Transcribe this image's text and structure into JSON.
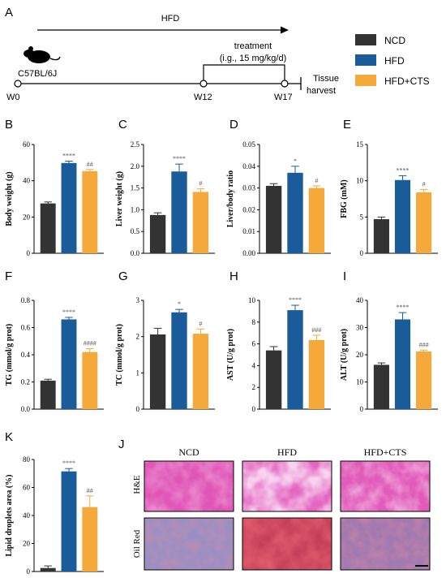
{
  "labels": {
    "panel_a": "A",
    "panel_j": "J"
  },
  "timeline": {
    "hfd_label": "HFD",
    "treatment_label": "treatment",
    "dose_label": "(i.g., 15 mg/kg/d)",
    "mouse_label": "C57BL/6J",
    "timepoints": [
      "W0",
      "W12",
      "W17"
    ],
    "end_label_1": "Tissue",
    "end_label_2": "harvest"
  },
  "legend": [
    {
      "name": "NCD",
      "color": "#333333"
    },
    {
      "name": "HFD",
      "color": "#1a5c99"
    },
    {
      "name": "HFD+CTS",
      "color": "#f4a93a"
    }
  ],
  "histology": {
    "columns": [
      "NCD",
      "HFD",
      "HFD+CTS"
    ],
    "rows": [
      "H&E",
      "Oil Red"
    ]
  },
  "chart_data": [
    {
      "panel": "B",
      "type": "bar",
      "categories": [
        "NCD",
        "HFD",
        "HFD+CTS"
      ],
      "values": [
        27.5,
        49.8,
        45.3
      ],
      "errors": [
        0.8,
        1.0,
        0.9
      ],
      "ylabel": "Body weight (g)",
      "ylim": [
        0,
        60
      ],
      "yticks": [
        "0",
        "20",
        "40",
        "60"
      ],
      "annotations": [
        "",
        "****",
        "##"
      ]
    },
    {
      "panel": "C",
      "type": "bar",
      "categories": [
        "NCD",
        "HFD",
        "HFD+CTS"
      ],
      "values": [
        0.88,
        1.88,
        1.41
      ],
      "errors": [
        0.05,
        0.17,
        0.07
      ],
      "ylabel": "Liver weight (g)",
      "ylim": [
        0,
        2.5
      ],
      "yticks": [
        "0.0",
        "0.5",
        "1.0",
        "1.5",
        "2.0",
        "2.5"
      ],
      "annotations": [
        "",
        "****",
        "#"
      ]
    },
    {
      "panel": "D",
      "type": "bar",
      "categories": [
        "NCD",
        "HFD",
        "HFD+CTS"
      ],
      "values": [
        0.031,
        0.037,
        0.03
      ],
      "errors": [
        0.001,
        0.003,
        0.001
      ],
      "ylabel": "Liver/body ratio",
      "ylim": [
        0,
        0.05
      ],
      "yticks": [
        "0.00",
        "0.01",
        "0.02",
        "0.03",
        "0.04",
        "0.05"
      ],
      "annotations": [
        "",
        "*",
        "#"
      ]
    },
    {
      "panel": "E",
      "type": "bar",
      "categories": [
        "NCD",
        "HFD",
        "HFD+CTS"
      ],
      "values": [
        4.7,
        10.1,
        8.4
      ],
      "errors": [
        0.3,
        0.6,
        0.4
      ],
      "ylabel": "FBG (mM)",
      "ylim": [
        0,
        15
      ],
      "yticks": [
        "0",
        "5",
        "10",
        "15"
      ],
      "annotations": [
        "",
        "****",
        "#"
      ]
    },
    {
      "panel": "F",
      "type": "bar",
      "categories": [
        "NCD",
        "HFD",
        "HFD+CTS"
      ],
      "values": [
        0.21,
        0.66,
        0.42
      ],
      "errors": [
        0.01,
        0.015,
        0.025
      ],
      "ylabel": "TG (mmol/g prot)",
      "ylim": [
        0,
        0.8
      ],
      "yticks": [
        "0.0",
        "0.2",
        "0.4",
        "0.6",
        "0.8"
      ],
      "annotations": [
        "",
        "****",
        "####"
      ]
    },
    {
      "panel": "G",
      "type": "bar",
      "categories": [
        "NCD",
        "HFD",
        "HFD+CTS"
      ],
      "values": [
        2.06,
        2.67,
        2.08
      ],
      "errors": [
        0.17,
        0.08,
        0.13
      ],
      "ylabel": "TC (mmol/g prot)",
      "ylim": [
        0,
        3
      ],
      "yticks": [
        "0",
        "1",
        "2",
        "3"
      ],
      "annotations": [
        "",
        "*",
        "#"
      ]
    },
    {
      "panel": "H",
      "type": "bar",
      "categories": [
        "NCD",
        "HFD",
        "HFD+CTS"
      ],
      "values": [
        5.4,
        9.1,
        6.35
      ],
      "errors": [
        0.35,
        0.45,
        0.45
      ],
      "ylabel": "AST (U/g prot)",
      "ylim": [
        0,
        10
      ],
      "yticks": [
        "0",
        "2",
        "4",
        "6",
        "8",
        "10"
      ],
      "annotations": [
        "",
        "****",
        "###"
      ]
    },
    {
      "panel": "I",
      "type": "bar",
      "categories": [
        "NCD",
        "HFD",
        "HFD+CTS"
      ],
      "values": [
        16.3,
        33.0,
        21.2
      ],
      "errors": [
        0.7,
        2.5,
        0.5
      ],
      "ylabel": "ALT (U/g prot)",
      "ylim": [
        0,
        40
      ],
      "yticks": [
        "0",
        "10",
        "20",
        "30",
        "40"
      ],
      "annotations": [
        "",
        "****",
        "###"
      ]
    },
    {
      "panel": "K",
      "type": "bar",
      "categories": [
        "NCD",
        "HFD",
        "HFD+CTS"
      ],
      "values": [
        2.5,
        71.5,
        46.0
      ],
      "errors": [
        1.5,
        2.0,
        8.0
      ],
      "ylabel": "Lipid droplets area (%)",
      "ylim": [
        0,
        80
      ],
      "yticks": [
        "0",
        "20",
        "40",
        "60",
        "80"
      ],
      "annotations": [
        "",
        "****",
        "##"
      ]
    }
  ]
}
